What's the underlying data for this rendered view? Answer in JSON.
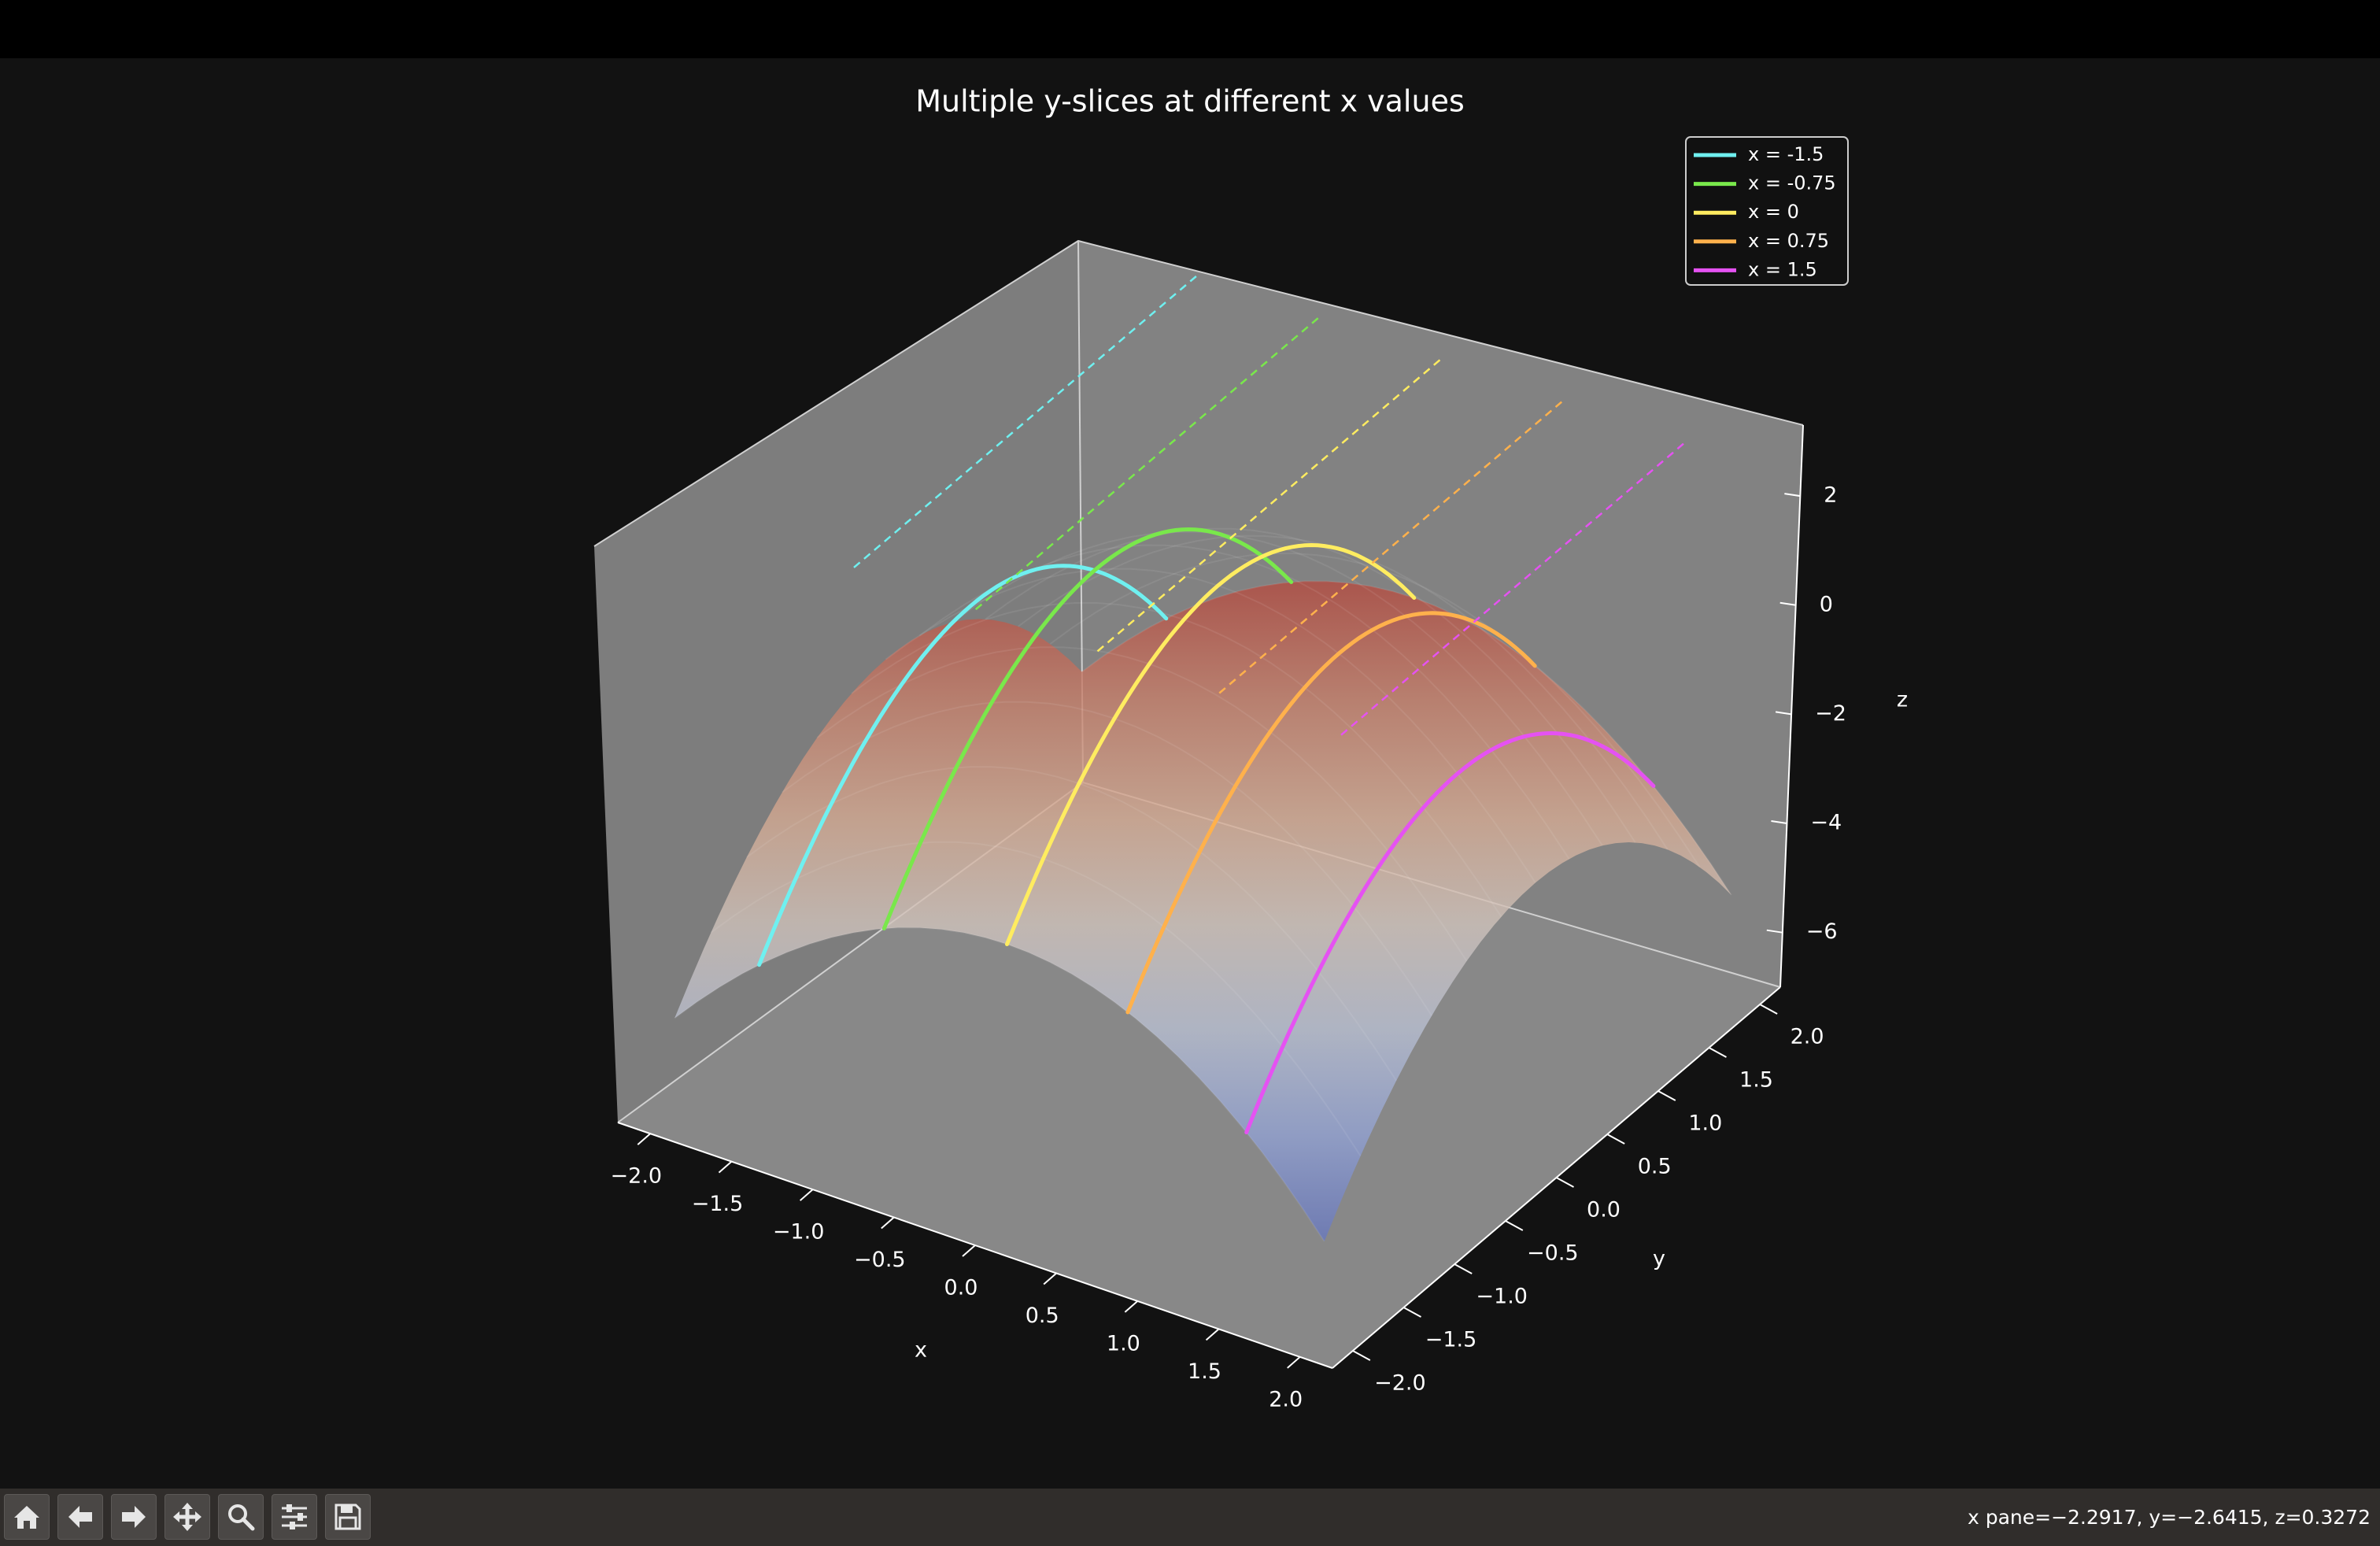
{
  "chart_data": {
    "type": "surface-3d",
    "title": "Multiple y-slices at different x values",
    "surface": "paraboloid, colormap coolwarm, semi-transparent",
    "xlabel": "x",
    "ylabel": "y",
    "zlabel": "z",
    "xlim": [
      -2.2,
      2.2
    ],
    "ylim": [
      -2.2,
      2.2
    ],
    "zlim": [
      -7,
      3.3
    ],
    "x_ticks": [
      "−2.0",
      "−1.5",
      "−1.0",
      "−0.5",
      "0.0",
      "0.5",
      "1.0",
      "1.5",
      "2.0"
    ],
    "y_ticks": [
      "−2.0",
      "−1.5",
      "−1.0",
      "−0.5",
      "0.0",
      "0.5",
      "1.0",
      "1.5",
      "2.0"
    ],
    "z_ticks": [
      "−6",
      "−4",
      "−2",
      "0",
      "2"
    ],
    "x_tick_values": [
      -2,
      -1.5,
      -1,
      -0.5,
      0,
      0.5,
      1,
      1.5,
      2
    ],
    "y_tick_values": [
      -2,
      -1.5,
      -1,
      -0.5,
      0,
      0.5,
      1,
      1.5,
      2
    ],
    "z_tick_values": [
      -6,
      -4,
      -2,
      0,
      2
    ],
    "series": [
      {
        "name": "x = -1.5",
        "x": -1.5,
        "color": "#6ff0f0"
      },
      {
        "name": "x = -0.75",
        "x": -0.75,
        "color": "#79e84b"
      },
      {
        "name": "x = 0",
        "x": 0,
        "color": "#ffec60"
      },
      {
        "name": "x = 0.75",
        "x": 0.75,
        "color": "#ffb14c"
      },
      {
        "name": "x = 1.5",
        "x": 1.5,
        "color": "#e552f2"
      }
    ],
    "legend_position": "top-right",
    "grid": false
  },
  "toolbar": {
    "buttons": [
      {
        "name": "home-button",
        "icon": "home-icon"
      },
      {
        "name": "back-button",
        "icon": "arrow-left-icon"
      },
      {
        "name": "forward-button",
        "icon": "arrow-right-icon"
      },
      {
        "name": "pan-button",
        "icon": "move-icon"
      },
      {
        "name": "zoom-button",
        "icon": "magnifier-icon"
      },
      {
        "name": "configure-subplots-button",
        "icon": "sliders-icon"
      },
      {
        "name": "save-button",
        "icon": "floppy-icon"
      }
    ],
    "coordinates": "x pane=−2.2917, y=−2.6415, z=0.3272"
  },
  "colors": {
    "background": "#121212",
    "pane": "#7f7f7f",
    "toolbar": "#302d2b"
  }
}
